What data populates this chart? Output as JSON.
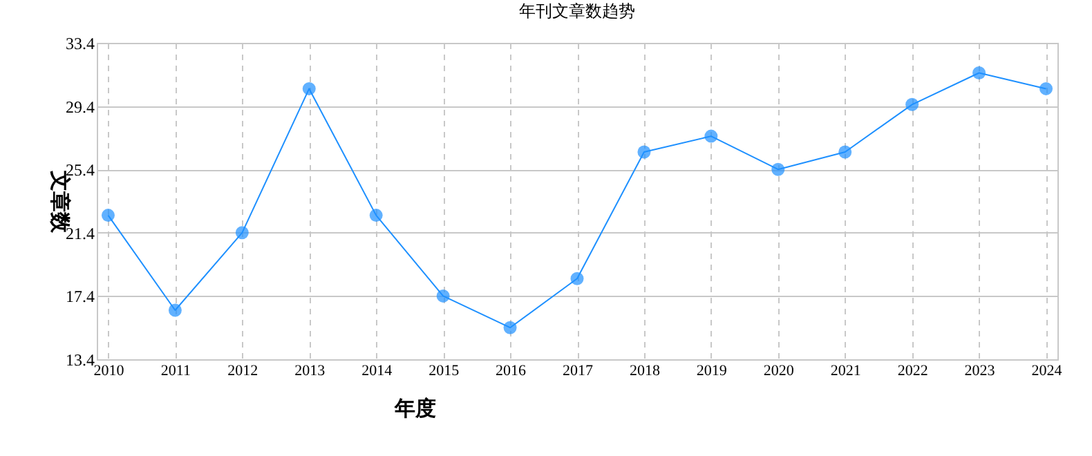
{
  "chart_data": {
    "type": "line",
    "title": "年刊文章数趋势",
    "xlabel": "年度",
    "ylabel": "文章数",
    "categories": [
      "2010",
      "2011",
      "2012",
      "2013",
      "2014",
      "2015",
      "2016",
      "2017",
      "2018",
      "2019",
      "2020",
      "2021",
      "2022",
      "2023",
      "2024"
    ],
    "series": [
      {
        "color": "#1e90ff",
        "values": [
          22.5,
          16.5,
          21.4,
          30.5,
          22.5,
          17.4,
          15.4,
          18.5,
          26.5,
          27.5,
          25.4,
          26.5,
          29.5,
          31.5,
          30.5
        ]
      }
    ],
    "ylim": [
      13.4,
      33.4
    ],
    "yticks": [
      13.4,
      17.4,
      21.4,
      25.4,
      29.4,
      33.4
    ],
    "grid": true,
    "marker": "circle",
    "line_style": "solid"
  }
}
